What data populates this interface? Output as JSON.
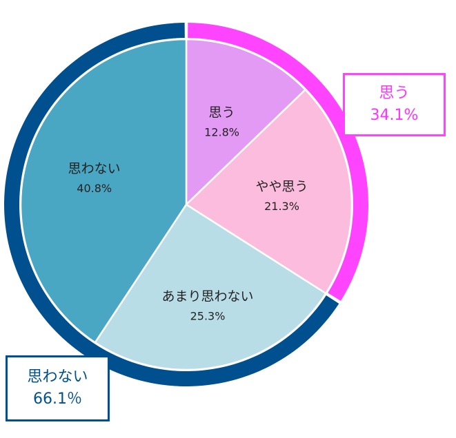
{
  "chart_data": {
    "type": "pie",
    "slices": [
      {
        "label": "思う",
        "value": 12.8,
        "display": "12.8%",
        "color": "#e39af5"
      },
      {
        "label": "やや思う",
        "value": 21.3,
        "display": "21.3%",
        "color": "#fcbcdd"
      },
      {
        "label": "あまり思わない",
        "value": 25.3,
        "display": "25.3%",
        "color": "#b9dde7"
      },
      {
        "label": "思わない",
        "value": 40.8,
        "display": "40.8%",
        "color": "#4aa7c4"
      }
    ],
    "groups": [
      {
        "label": "思う",
        "value": 34.1,
        "display": "34.1%",
        "color": "#ff44ff"
      },
      {
        "label": "思わない",
        "value": 66.1,
        "display": "66.1％",
        "color": "#00508f"
      }
    ],
    "start_angle": "12 o'clock",
    "direction": "clockwise"
  }
}
